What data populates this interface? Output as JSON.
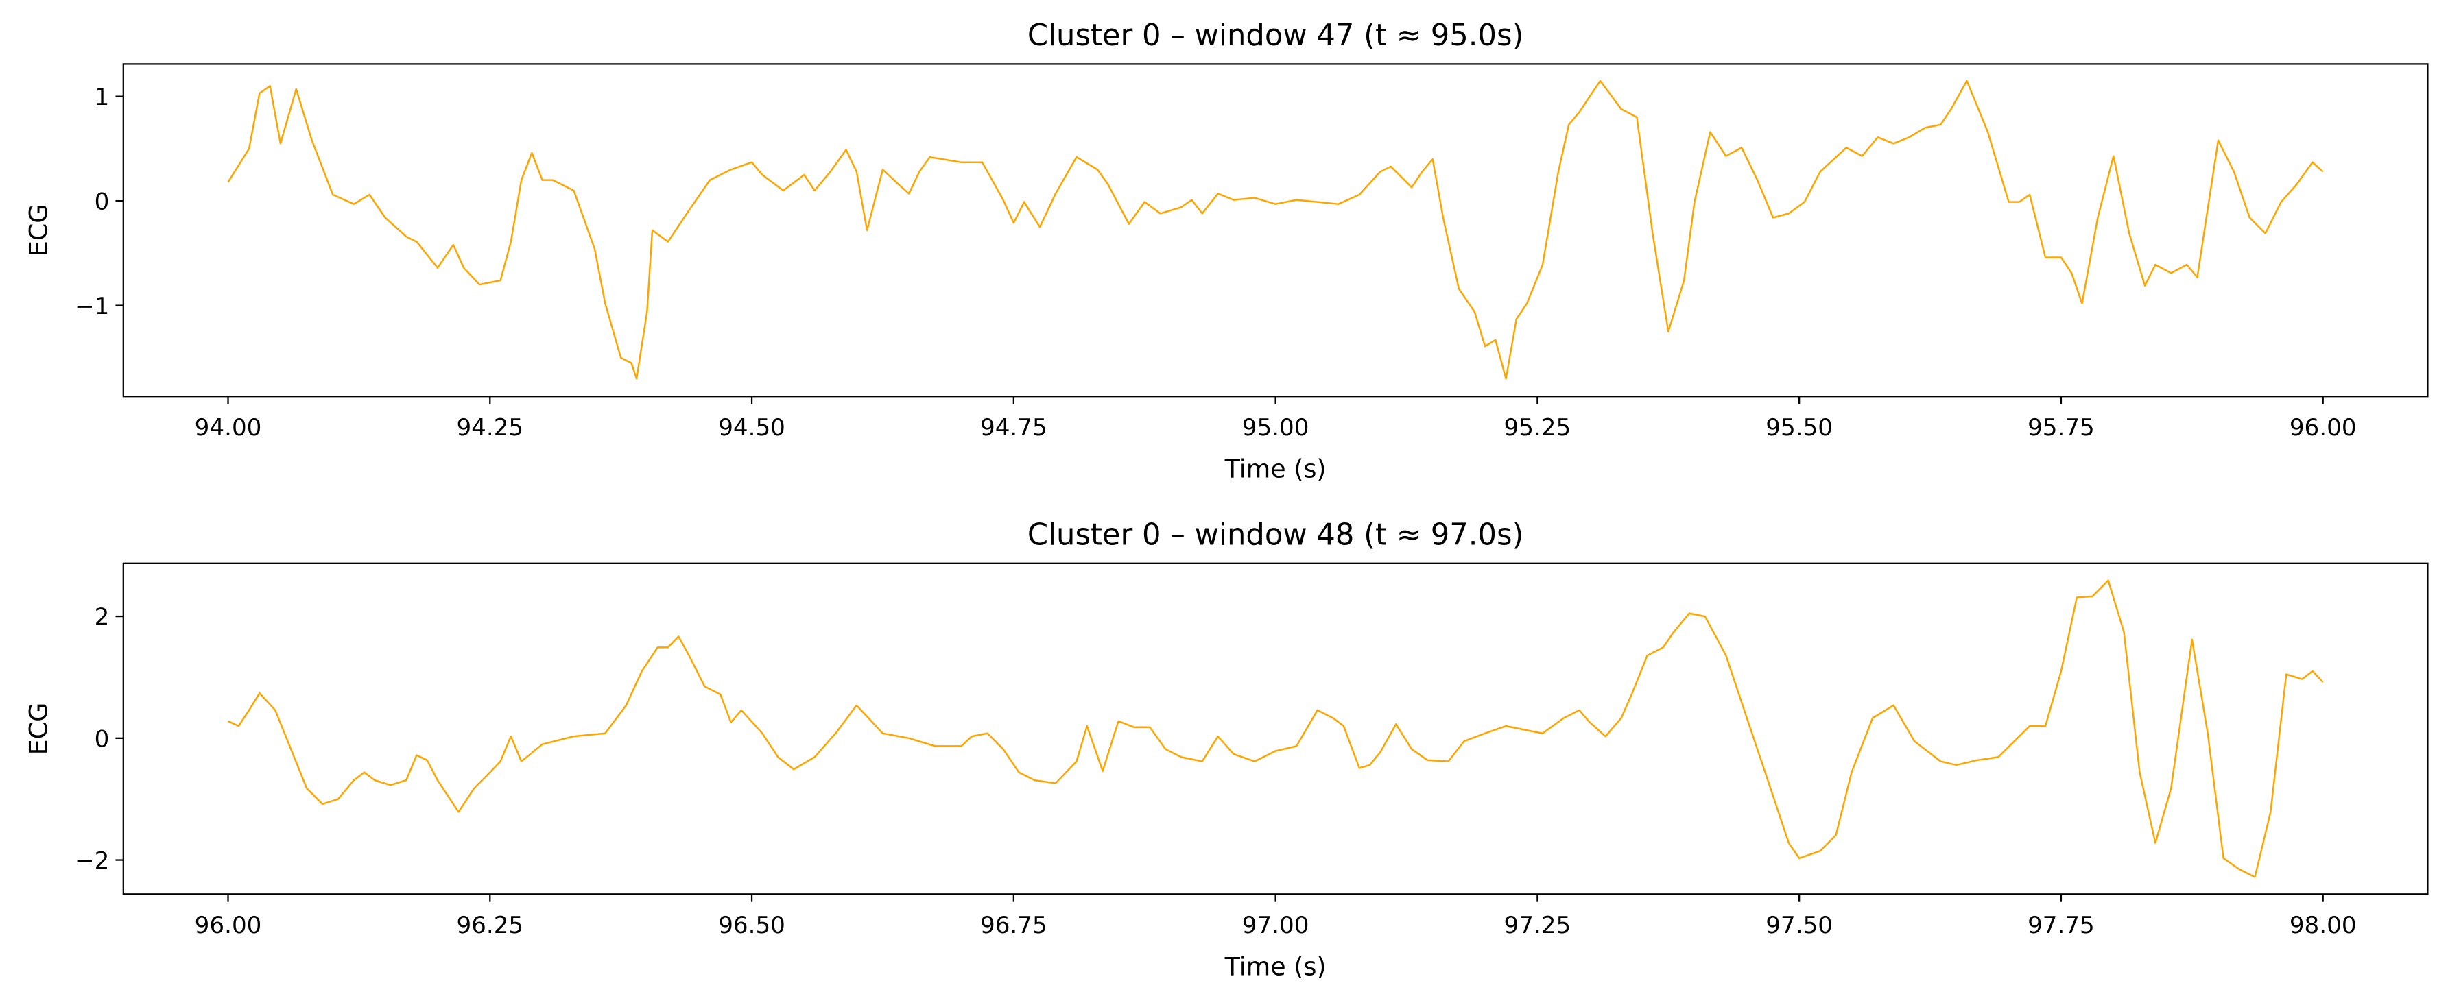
{
  "chart_data": [
    {
      "type": "line",
      "title": "Cluster 0 – window 47 (t ≈ 95.0s)",
      "xlabel": "Time (s)",
      "ylabel": "ECG",
      "color": "#ffa500",
      "xlim": [
        93.9,
        96.1
      ],
      "ylim": [
        -1.87,
        1.31
      ],
      "xticks": [
        {
          "value": 94,
          "label": "94.00"
        },
        {
          "value": 94.25,
          "label": "94.25"
        },
        {
          "value": 94.5,
          "label": "94.50"
        },
        {
          "value": 94.75,
          "label": "94.75"
        },
        {
          "value": 95,
          "label": "95.00"
        },
        {
          "value": 95.25,
          "label": "95.25"
        },
        {
          "value": 95.5,
          "label": "95.50"
        },
        {
          "value": 95.75,
          "label": "95.75"
        },
        {
          "value": 96,
          "label": "96.00"
        }
      ],
      "yticks": [
        {
          "value": -1,
          "label": "−1"
        },
        0,
        1
      ],
      "x": [
        94.0,
        94.02,
        94.03,
        94.04,
        94.05,
        94.065,
        94.08,
        94.1,
        94.12,
        94.135,
        94.15,
        94.17,
        94.18,
        94.2,
        94.215,
        94.225,
        94.24,
        94.26,
        94.27,
        94.28,
        94.29,
        94.3,
        94.31,
        94.33,
        94.35,
        94.36,
        94.375,
        94.385,
        94.39,
        94.4,
        94.405,
        94.42,
        94.44,
        94.46,
        94.48,
        94.5,
        94.51,
        94.53,
        94.55,
        94.56,
        94.575,
        94.59,
        94.6,
        94.61,
        94.625,
        94.64,
        94.65,
        94.66,
        94.67,
        94.7,
        94.72,
        94.74,
        94.75,
        94.76,
        94.775,
        94.79,
        94.81,
        94.83,
        94.84,
        94.86,
        94.875,
        94.89,
        94.91,
        94.92,
        94.93,
        94.945,
        94.96,
        94.98,
        95.0,
        95.02,
        95.04,
        95.06,
        95.08,
        95.1,
        95.11,
        95.13,
        95.14,
        95.15,
        95.16,
        95.175,
        95.19,
        95.2,
        95.21,
        95.22,
        95.23,
        95.24,
        95.255,
        95.27,
        95.28,
        95.29,
        95.31,
        95.33,
        95.345,
        95.36,
        95.375,
        95.39,
        95.4,
        95.415,
        95.43,
        95.445,
        95.46,
        95.475,
        95.49,
        95.505,
        95.52,
        95.545,
        95.56,
        95.575,
        95.59,
        95.605,
        95.62,
        95.635,
        95.645,
        95.66,
        95.68,
        95.7,
        95.71,
        95.72,
        95.735,
        95.75,
        95.76,
        95.77,
        95.785,
        95.8,
        95.815,
        95.83,
        95.84,
        95.855,
        95.87,
        95.88,
        95.9,
        95.915,
        95.93,
        95.945,
        95.96,
        95.975,
        95.99,
        96.0
      ],
      "values": [
        0.18,
        0.5,
        1.03,
        1.1,
        0.55,
        1.07,
        0.58,
        0.06,
        -0.03,
        0.06,
        -0.16,
        -0.34,
        -0.39,
        -0.64,
        -0.42,
        -0.64,
        -0.8,
        -0.76,
        -0.39,
        0.2,
        0.46,
        0.2,
        0.2,
        0.1,
        -0.46,
        -0.98,
        -1.5,
        -1.55,
        -1.7,
        -1.06,
        -0.28,
        -0.39,
        -0.09,
        0.2,
        0.3,
        0.37,
        0.25,
        0.1,
        0.25,
        0.1,
        0.28,
        0.49,
        0.28,
        -0.28,
        0.3,
        0.16,
        0.07,
        0.28,
        0.42,
        0.37,
        0.37,
        0.01,
        -0.21,
        -0.01,
        -0.25,
        0.07,
        0.42,
        0.3,
        0.16,
        -0.22,
        -0.01,
        -0.12,
        -0.06,
        0.01,
        -0.12,
        0.07,
        0.01,
        0.03,
        -0.03,
        0.01,
        -0.01,
        -0.03,
        0.06,
        0.28,
        0.33,
        0.13,
        0.28,
        0.4,
        -0.16,
        -0.84,
        -1.06,
        -1.39,
        -1.33,
        -1.7,
        -1.13,
        -0.98,
        -0.61,
        0.28,
        0.73,
        0.85,
        1.15,
        0.88,
        0.8,
        -0.31,
        -1.25,
        -0.76,
        -0.01,
        0.66,
        0.43,
        0.51,
        0.2,
        -0.16,
        -0.12,
        -0.01,
        0.28,
        0.51,
        0.43,
        0.61,
        0.55,
        0.61,
        0.7,
        0.73,
        0.88,
        1.15,
        0.66,
        -0.01,
        -0.01,
        0.06,
        -0.54,
        -0.54,
        -0.69,
        -0.98,
        -0.16,
        0.43,
        -0.31,
        -0.81,
        -0.61,
        -0.69,
        -0.61,
        -0.73,
        0.58,
        0.28,
        -0.16,
        -0.31,
        -0.01,
        0.16,
        0.37,
        0.28
      ]
    },
    {
      "type": "line",
      "title": "Cluster 0 – window 48 (t ≈ 97.0s)",
      "xlabel": "Time (s)",
      "ylabel": "ECG",
      "color": "#ffa500",
      "xlim": [
        95.9,
        98.1
      ],
      "ylim": [
        -2.56,
        2.87
      ],
      "xticks": [
        {
          "value": 96,
          "label": "96.00"
        },
        {
          "value": 96.25,
          "label": "96.25"
        },
        {
          "value": 96.5,
          "label": "96.50"
        },
        {
          "value": 96.75,
          "label": "96.75"
        },
        {
          "value": 97,
          "label": "97.00"
        },
        {
          "value": 97.25,
          "label": "97.25"
        },
        {
          "value": 97.5,
          "label": "97.50"
        },
        {
          "value": 97.75,
          "label": "97.75"
        },
        {
          "value": 98,
          "label": "98.00"
        }
      ],
      "yticks": [
        {
          "value": -2,
          "label": "−2"
        },
        0,
        2
      ],
      "x": [
        96.0,
        96.01,
        96.02,
        96.03,
        96.045,
        96.06,
        96.075,
        96.09,
        96.105,
        96.12,
        96.13,
        96.14,
        96.155,
        96.17,
        96.18,
        96.19,
        96.2,
        96.22,
        96.235,
        96.25,
        96.26,
        96.27,
        96.28,
        96.3,
        96.33,
        96.36,
        96.38,
        96.395,
        96.41,
        96.42,
        96.43,
        96.44,
        96.455,
        96.47,
        96.48,
        96.49,
        96.51,
        96.525,
        96.54,
        96.56,
        96.58,
        96.6,
        96.625,
        96.65,
        96.675,
        96.7,
        96.71,
        96.725,
        96.74,
        96.755,
        96.77,
        96.79,
        96.81,
        96.82,
        96.835,
        96.85,
        96.865,
        96.88,
        96.895,
        96.91,
        96.93,
        96.945,
        96.96,
        96.98,
        97.0,
        97.02,
        97.04,
        97.055,
        97.065,
        97.08,
        97.09,
        97.1,
        97.115,
        97.13,
        97.145,
        97.165,
        97.18,
        97.2,
        97.22,
        97.24,
        97.255,
        97.275,
        97.29,
        97.3,
        97.315,
        97.33,
        97.34,
        97.355,
        97.37,
        97.38,
        97.395,
        97.41,
        97.43,
        97.45,
        97.47,
        97.49,
        97.5,
        97.52,
        97.535,
        97.55,
        97.57,
        97.59,
        97.61,
        97.635,
        97.65,
        97.67,
        97.69,
        97.72,
        97.735,
        97.75,
        97.765,
        97.78,
        97.795,
        97.81,
        97.825,
        97.84,
        97.855,
        97.875,
        97.89,
        97.905,
        97.92,
        97.935,
        97.95,
        97.965,
        97.98,
        97.99,
        98.0
      ],
      "values": [
        0.28,
        0.2,
        0.46,
        0.74,
        0.46,
        -0.18,
        -0.82,
        -1.08,
        -1.0,
        -0.69,
        -0.56,
        -0.69,
        -0.77,
        -0.69,
        -0.28,
        -0.36,
        -0.69,
        -1.21,
        -0.82,
        -0.56,
        -0.38,
        0.03,
        -0.38,
        -0.1,
        0.03,
        0.08,
        0.54,
        1.1,
        1.49,
        1.49,
        1.67,
        1.36,
        0.85,
        0.72,
        0.26,
        0.46,
        0.08,
        -0.31,
        -0.51,
        -0.31,
        0.08,
        0.54,
        0.08,
        0.0,
        -0.13,
        -0.13,
        0.03,
        0.08,
        -0.18,
        -0.56,
        -0.69,
        -0.74,
        -0.38,
        0.2,
        -0.54,
        0.28,
        0.18,
        0.18,
        -0.18,
        -0.31,
        -0.38,
        0.03,
        -0.26,
        -0.38,
        -0.21,
        -0.13,
        0.46,
        0.33,
        0.2,
        -0.49,
        -0.44,
        -0.23,
        0.23,
        -0.18,
        -0.36,
        -0.38,
        -0.05,
        0.08,
        0.2,
        0.13,
        0.08,
        0.33,
        0.46,
        0.26,
        0.03,
        0.33,
        0.72,
        1.36,
        1.49,
        1.74,
        2.05,
        2.0,
        1.36,
        0.33,
        -0.69,
        -1.72,
        -1.97,
        -1.85,
        -1.59,
        -0.56,
        0.33,
        0.54,
        -0.05,
        -0.38,
        -0.44,
        -0.36,
        -0.31,
        0.2,
        0.2,
        1.1,
        2.31,
        2.33,
        2.59,
        1.74,
        -0.56,
        -1.72,
        -0.82,
        1.62,
        0.08,
        -1.97,
        -2.15,
        -2.28,
        -1.21,
        1.05,
        0.97,
        1.1,
        0.92
      ]
    }
  ]
}
